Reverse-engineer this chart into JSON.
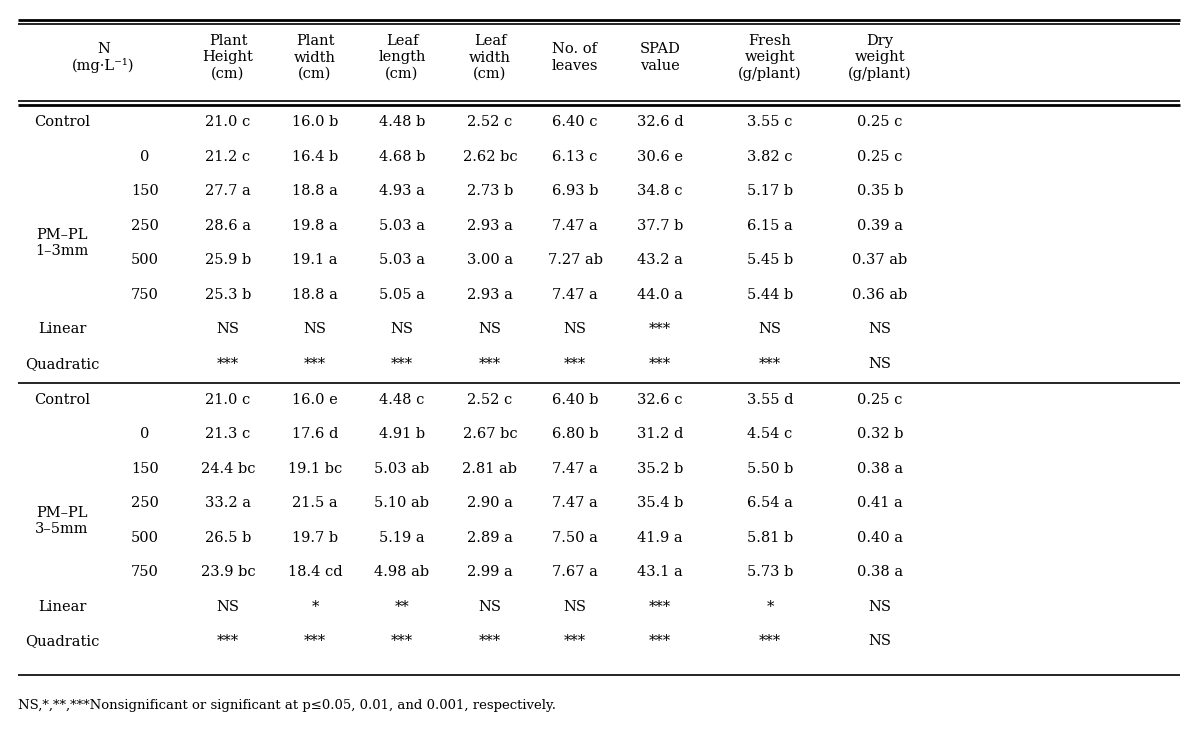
{
  "col_headers": [
    "N\n(mg·L⁻¹)",
    "Plant\nHeight\n(cm)",
    "Plant\nwidth\n(cm)",
    "Leaf\nlength\n(cm)",
    "Leaf\nwidth\n(cm)",
    "No. of\nleaves",
    "SPAD\nvalue",
    "Fresh\nweight\n(g/plant)",
    "Dry\nweight\n(g/plant)"
  ],
  "section1_label_line1": "PM–PL",
  "section1_label_line2": "1–3mm",
  "section2_label_line1": "PM–PL",
  "section2_label_line2": "3–5mm",
  "rows_section1": [
    [
      "Control",
      "",
      "21.0 c",
      "16.0 b",
      "4.48 b",
      "2.52 c",
      "6.40 c",
      "32.6 d",
      "3.55 c",
      "0.25 c"
    ],
    [
      "",
      "0",
      "21.2 c",
      "16.4 b",
      "4.68 b",
      "2.62 bc",
      "6.13 c",
      "30.6 e",
      "3.82 c",
      "0.25 c"
    ],
    [
      "",
      "150",
      "27.7 a",
      "18.8 a",
      "4.93 a",
      "2.73 b",
      "6.93 b",
      "34.8 c",
      "5.17 b",
      "0.35 b"
    ],
    [
      "",
      "250",
      "28.6 a",
      "19.8 a",
      "5.03 a",
      "2.93 a",
      "7.47 a",
      "37.7 b",
      "6.15 a",
      "0.39 a"
    ],
    [
      "",
      "500",
      "25.9 b",
      "19.1 a",
      "5.03 a",
      "3.00 a",
      "7.27 ab",
      "43.2 a",
      "5.45 b",
      "0.37 ab"
    ],
    [
      "",
      "750",
      "25.3 b",
      "18.8 a",
      "5.05 a",
      "2.93 a",
      "7.47 a",
      "44.0 a",
      "5.44 b",
      "0.36 ab"
    ],
    [
      "Linear",
      "",
      "NS",
      "NS",
      "NS",
      "NS",
      "NS",
      "***",
      "NS",
      "NS"
    ],
    [
      "Quadratic",
      "",
      "***",
      "***",
      "***",
      "***",
      "***",
      "***",
      "***",
      "NS"
    ]
  ],
  "rows_section2": [
    [
      "Control",
      "",
      "21.0 c",
      "16.0 e",
      "4.48 c",
      "2.52 c",
      "6.40 b",
      "32.6 c",
      "3.55 d",
      "0.25 c"
    ],
    [
      "",
      "0",
      "21.3 c",
      "17.6 d",
      "4.91 b",
      "2.67 bc",
      "6.80 b",
      "31.2 d",
      "4.54 c",
      "0.32 b"
    ],
    [
      "",
      "150",
      "24.4 bc",
      "19.1 bc",
      "5.03 ab",
      "2.81 ab",
      "7.47 a",
      "35.2 b",
      "5.50 b",
      "0.38 a"
    ],
    [
      "",
      "250",
      "33.2 a",
      "21.5 a",
      "5.10 ab",
      "2.90 a",
      "7.47 a",
      "35.4 b",
      "6.54 a",
      "0.41 a"
    ],
    [
      "",
      "500",
      "26.5 b",
      "19.7 b",
      "5.19 a",
      "2.89 a",
      "7.50 a",
      "41.9 a",
      "5.81 b",
      "0.40 a"
    ],
    [
      "",
      "750",
      "23.9 bc",
      "18.4 cd",
      "4.98 ab",
      "2.99 a",
      "7.67 a",
      "43.1 a",
      "5.73 b",
      "0.38 a"
    ],
    [
      "Linear",
      "",
      "NS",
      "*",
      "**",
      "NS",
      "NS",
      "***",
      "*",
      "NS"
    ],
    [
      "Quadratic",
      "",
      "***",
      "***",
      "***",
      "***",
      "***",
      "***",
      "***",
      "NS"
    ]
  ],
  "footnote": "NS,*,**,***Nonsignificant or significant at p≤0.05, 0.01, and 0.001, respectively.",
  "bg_color": "#ffffff",
  "text_color": "#000000",
  "font_size": 10.5,
  "header_font_size": 10.5
}
